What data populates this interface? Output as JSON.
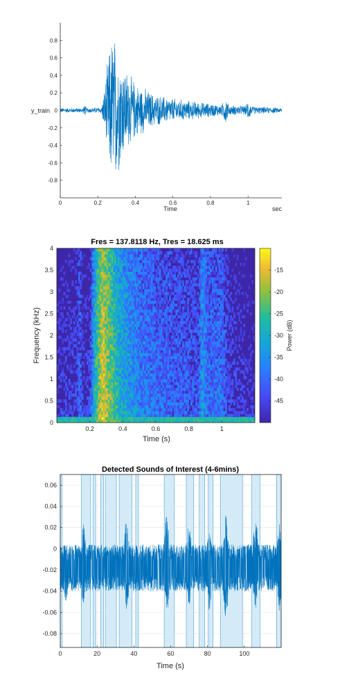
{
  "chart_data": [
    {
      "type": "line",
      "title": "",
      "xlabel": "Time",
      "xunit": "sec",
      "ylabel": "y_train",
      "xlim": [
        0,
        1.18
      ],
      "ylim": [
        -1,
        1
      ],
      "xticks": [
        0,
        0.2,
        0.4,
        0.6,
        0.8,
        1
      ],
      "xtick_labels": [
        "0",
        "0.2",
        "0.4",
        "0.6",
        "0.8",
        "1"
      ],
      "yticks": [
        0.8,
        0.6,
        0.4,
        0.2,
        0,
        -0.2,
        -0.4,
        -0.6,
        -0.8
      ],
      "ytick_labels": [
        "0.8",
        "0.6",
        "0.4",
        "0.2",
        "0",
        "-0.2",
        "-0.4",
        "-0.6",
        "-0.8"
      ],
      "envelope": [
        {
          "t": 0.0,
          "amp": 0.03
        },
        {
          "t": 0.12,
          "amp": 0.03
        },
        {
          "t": 0.13,
          "amp": 0.08
        },
        {
          "t": 0.14,
          "amp": 0.03
        },
        {
          "t": 0.22,
          "amp": 0.04
        },
        {
          "t": 0.24,
          "amp": 0.35
        },
        {
          "t": 0.26,
          "amp": 0.75
        },
        {
          "t": 0.28,
          "amp": 1.0
        },
        {
          "t": 0.3,
          "amp": 0.85
        },
        {
          "t": 0.34,
          "amp": 0.55
        },
        {
          "t": 0.4,
          "amp": 0.35
        },
        {
          "t": 0.5,
          "amp": 0.2
        },
        {
          "t": 0.6,
          "amp": 0.15
        },
        {
          "t": 0.75,
          "amp": 0.1
        },
        {
          "t": 0.86,
          "amp": 0.07
        },
        {
          "t": 0.88,
          "amp": 0.18
        },
        {
          "t": 0.9,
          "amp": 0.06
        },
        {
          "t": 0.99,
          "amp": 0.06
        },
        {
          "t": 1.0,
          "amp": 0.14
        },
        {
          "t": 1.02,
          "amp": 0.05
        },
        {
          "t": 1.18,
          "amp": 0.03
        }
      ],
      "colors": {
        "line": "#0072BD"
      }
    },
    {
      "type": "heatmap",
      "title": "Fres = 137.8118 Hz, Tres = 18.625 ms",
      "xlabel": "Time (s)",
      "ylabel": "Frequency (kHz)",
      "colorbar_label": "Power (dB)",
      "xlim": [
        0,
        1.2
      ],
      "ylim": [
        0,
        4
      ],
      "clim": [
        -50,
        -10
      ],
      "xticks": [
        0.2,
        0.4,
        0.6,
        0.8,
        1
      ],
      "xtick_labels": [
        "0.2",
        "0.4",
        "0.6",
        "0.8",
        "1"
      ],
      "yticks": [
        0,
        0.5,
        1,
        1.5,
        2,
        2.5,
        3,
        3.5,
        4
      ],
      "ytick_labels": [
        "0",
        "0.5",
        "1",
        "1.5",
        "2",
        "2.5",
        "3",
        "3.5",
        "4"
      ],
      "cticks": [
        -15,
        -20,
        -25,
        -30,
        -35,
        -40,
        -45
      ],
      "ctick_labels": [
        "-15",
        "-20",
        "-25",
        "-30",
        "-35",
        "-40",
        "-45"
      ],
      "colormap": "parula",
      "time_energy": [
        {
          "t": 0.0,
          "db": -47
        },
        {
          "t": 0.12,
          "db": -46
        },
        {
          "t": 0.14,
          "db": -40
        },
        {
          "t": 0.16,
          "db": -47
        },
        {
          "t": 0.2,
          "db": -46
        },
        {
          "t": 0.22,
          "db": -34
        },
        {
          "t": 0.25,
          "db": -22
        },
        {
          "t": 0.28,
          "db": -16
        },
        {
          "t": 0.32,
          "db": -22
        },
        {
          "t": 0.38,
          "db": -30
        },
        {
          "t": 0.5,
          "db": -37
        },
        {
          "t": 0.7,
          "db": -41
        },
        {
          "t": 0.86,
          "db": -43
        },
        {
          "t": 0.88,
          "db": -33
        },
        {
          "t": 0.92,
          "db": -40
        },
        {
          "t": 1.0,
          "db": -39
        },
        {
          "t": 1.05,
          "db": -46
        },
        {
          "t": 1.2,
          "db": -48
        }
      ],
      "low_band_db": -28
    },
    {
      "type": "line",
      "title": "Detected Sounds of Interest (4-6mins)",
      "xlabel": "Time (s)",
      "ylabel": "",
      "xlim": [
        0,
        120
      ],
      "ylim": [
        -0.093,
        0.07
      ],
      "grid": true,
      "xticks": [
        0,
        20,
        40,
        60,
        80,
        100
      ],
      "xtick_labels": [
        "0",
        "20",
        "40",
        "60",
        "80",
        "100"
      ],
      "yticks": [
        0.06,
        0.04,
        0.02,
        0,
        -0.02,
        -0.04,
        -0.06,
        -0.08
      ],
      "ytick_labels": [
        "0.06",
        "0.04",
        "0.02",
        "0",
        "-0.02",
        "-0.04",
        "-0.06",
        "-0.08"
      ],
      "baseline": -0.018,
      "detected_regions": [
        [
          0,
          1
        ],
        [
          11.5,
          16.5
        ],
        [
          17.8,
          19.2
        ],
        [
          22,
          23.5
        ],
        [
          24.5,
          30.5
        ],
        [
          32,
          39
        ],
        [
          41,
          42.5
        ],
        [
          56.5,
          62
        ],
        [
          68.5,
          72.5
        ],
        [
          75.5,
          78.5
        ],
        [
          80.5,
          83
        ],
        [
          87,
          99
        ],
        [
          104,
          108.5
        ],
        [
          117.5,
          120
        ]
      ],
      "peaks": [
        {
          "t": 3,
          "top": 0.004,
          "bottom": -0.05
        },
        {
          "t": 12.5,
          "top": 0.025,
          "bottom": -0.055
        },
        {
          "t": 36,
          "top": 0.03,
          "bottom": -0.058
        },
        {
          "t": 58,
          "top": 0.037,
          "bottom": -0.062
        },
        {
          "t": 70,
          "top": 0.025,
          "bottom": -0.055
        },
        {
          "t": 81,
          "top": 0.028,
          "bottom": -0.062
        },
        {
          "t": 90,
          "top": 0.032,
          "bottom": -0.07
        },
        {
          "t": 106,
          "top": 0.034,
          "bottom": -0.058
        },
        {
          "t": 119,
          "top": 0.025,
          "bottom": -0.06
        }
      ],
      "colors": {
        "line": "#0072BD",
        "region_fill": "#d4ebf7",
        "region_edge": "#6fb3de"
      }
    }
  ]
}
